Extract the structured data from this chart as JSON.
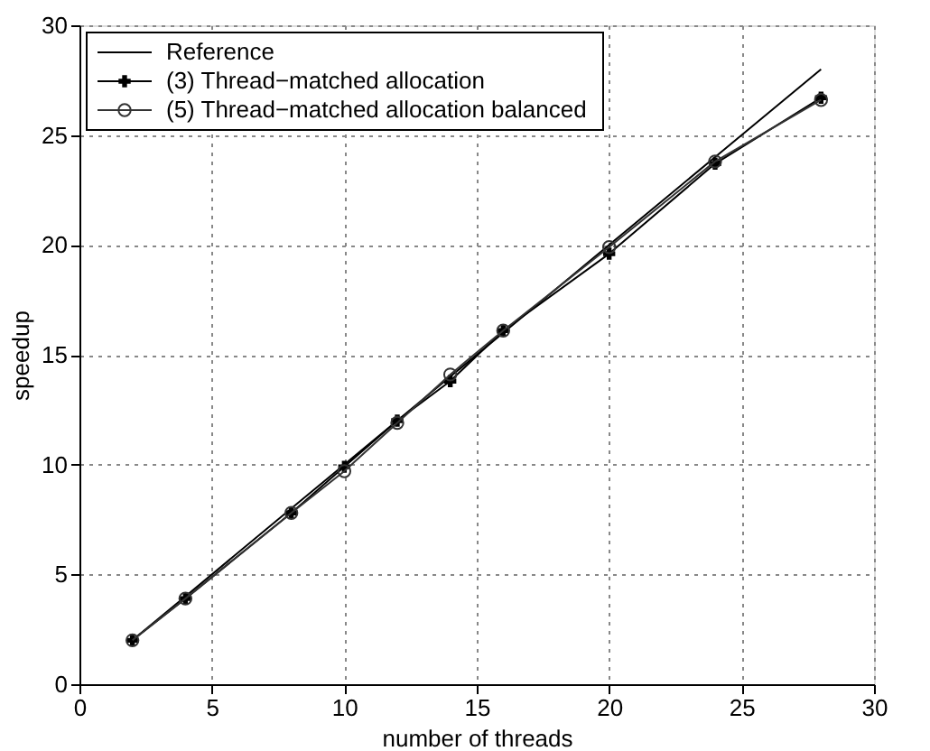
{
  "chart_data": {
    "type": "line",
    "xlabel": "number of threads",
    "ylabel": "speedup",
    "x": [
      2,
      4,
      8,
      10,
      12,
      14,
      16,
      20,
      24,
      28
    ],
    "series": [
      {
        "name": "Reference",
        "color": "#000000",
        "marker": "none",
        "values": [
          2,
          4,
          8,
          10,
          12,
          14,
          16,
          20,
          24,
          28
        ]
      },
      {
        "name": "(3) Thread−matched allocation",
        "color": "#000000",
        "marker": "cross",
        "values": [
          2,
          3.9,
          7.8,
          9.9,
          12,
          13.8,
          16.1,
          19.6,
          23.7,
          26.7
        ]
      },
      {
        "name": "(5) Thread−matched allocation balanced",
        "color": "#333333",
        "marker": "circle",
        "values": [
          2,
          3.9,
          7.8,
          9.7,
          11.9,
          14.1,
          16.1,
          19.9,
          23.8,
          26.6
        ]
      }
    ],
    "xlim": [
      0,
      30
    ],
    "ylim": [
      0,
      30
    ],
    "xticks": [
      0,
      5,
      10,
      15,
      20,
      25,
      30
    ],
    "yticks": [
      0,
      5,
      10,
      15,
      20,
      25,
      30
    ],
    "grid": true,
    "legend": "top left",
    "line_style": "solid"
  }
}
